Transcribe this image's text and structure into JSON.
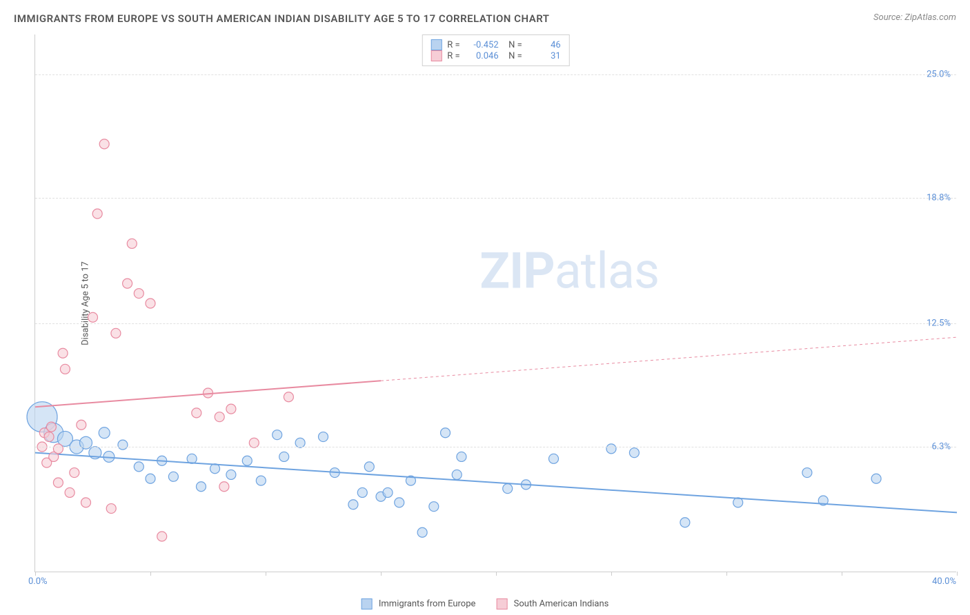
{
  "title": "IMMIGRANTS FROM EUROPE VS SOUTH AMERICAN INDIAN DISABILITY AGE 5 TO 17 CORRELATION CHART",
  "source": "Source: ZipAtlas.com",
  "ylabel": "Disability Age 5 to 17",
  "watermark_zip": "ZIP",
  "watermark_atlas": "atlas",
  "chart": {
    "type": "scatter",
    "xlim": [
      0,
      40
    ],
    "ylim": [
      0,
      27
    ],
    "xticks": [
      0,
      5,
      10,
      15,
      20,
      25,
      30,
      35,
      40
    ],
    "ytick_labels": [
      {
        "v": 6.3,
        "label": "6.3%"
      },
      {
        "v": 12.5,
        "label": "12.5%"
      },
      {
        "v": 18.8,
        "label": "18.8%"
      },
      {
        "v": 25.0,
        "label": "25.0%"
      }
    ],
    "xmin_label": "0.0%",
    "xmax_label": "40.0%",
    "background_color": "#ffffff",
    "grid_color": "#e0e0e0",
    "marker_radius": 7,
    "marker_stroke_width": 1.2,
    "trend_line_width": 2
  },
  "series": [
    {
      "id": "europe",
      "name": "Immigrants from Europe",
      "color_fill": "#b9d3f0",
      "color_stroke": "#6ea3e0",
      "stats": {
        "R": "-0.452",
        "N": "46"
      },
      "trend": {
        "x1": 0,
        "y1": 6.0,
        "x2": 40,
        "y2": 3.0,
        "dashed_from": null
      },
      "points": [
        {
          "x": 0.3,
          "y": 7.8,
          "r": 22
        },
        {
          "x": 0.8,
          "y": 7.0,
          "r": 14
        },
        {
          "x": 1.3,
          "y": 6.7,
          "r": 11
        },
        {
          "x": 1.8,
          "y": 6.3,
          "r": 10
        },
        {
          "x": 2.2,
          "y": 6.5,
          "r": 9
        },
        {
          "x": 2.6,
          "y": 6.0,
          "r": 9
        },
        {
          "x": 3.0,
          "y": 7.0,
          "r": 8
        },
        {
          "x": 3.2,
          "y": 5.8,
          "r": 8
        },
        {
          "x": 3.8,
          "y": 6.4
        },
        {
          "x": 4.5,
          "y": 5.3
        },
        {
          "x": 5.0,
          "y": 4.7
        },
        {
          "x": 5.5,
          "y": 5.6
        },
        {
          "x": 6.0,
          "y": 4.8
        },
        {
          "x": 6.8,
          "y": 5.7
        },
        {
          "x": 7.2,
          "y": 4.3
        },
        {
          "x": 7.8,
          "y": 5.2
        },
        {
          "x": 8.5,
          "y": 4.9
        },
        {
          "x": 9.2,
          "y": 5.6
        },
        {
          "x": 9.8,
          "y": 4.6
        },
        {
          "x": 10.5,
          "y": 6.9
        },
        {
          "x": 10.8,
          "y": 5.8
        },
        {
          "x": 11.5,
          "y": 6.5
        },
        {
          "x": 12.5,
          "y": 6.8
        },
        {
          "x": 13.0,
          "y": 5.0
        },
        {
          "x": 13.8,
          "y": 3.4
        },
        {
          "x": 14.2,
          "y": 4.0
        },
        {
          "x": 14.5,
          "y": 5.3
        },
        {
          "x": 15.0,
          "y": 3.8
        },
        {
          "x": 15.3,
          "y": 4.0
        },
        {
          "x": 15.8,
          "y": 3.5
        },
        {
          "x": 16.3,
          "y": 4.6
        },
        {
          "x": 16.8,
          "y": 2.0
        },
        {
          "x": 17.3,
          "y": 3.3
        },
        {
          "x": 17.8,
          "y": 7.0
        },
        {
          "x": 18.3,
          "y": 4.9
        },
        {
          "x": 18.5,
          "y": 5.8
        },
        {
          "x": 20.5,
          "y": 4.2
        },
        {
          "x": 21.3,
          "y": 4.4
        },
        {
          "x": 22.5,
          "y": 5.7
        },
        {
          "x": 25.0,
          "y": 6.2
        },
        {
          "x": 26.0,
          "y": 6.0
        },
        {
          "x": 28.2,
          "y": 2.5
        },
        {
          "x": 30.5,
          "y": 3.5
        },
        {
          "x": 33.5,
          "y": 5.0
        },
        {
          "x": 34.2,
          "y": 3.6
        },
        {
          "x": 36.5,
          "y": 4.7
        }
      ]
    },
    {
      "id": "sai",
      "name": "South American Indians",
      "color_fill": "#f6cdd6",
      "color_stroke": "#e88aa0",
      "stats": {
        "R": "0.046",
        "N": "31"
      },
      "trend": {
        "x1": 0,
        "y1": 8.3,
        "x2": 40,
        "y2": 11.8,
        "dashed_from": 15
      },
      "points": [
        {
          "x": 0.3,
          "y": 6.3
        },
        {
          "x": 0.4,
          "y": 7.0
        },
        {
          "x": 0.5,
          "y": 5.5
        },
        {
          "x": 0.6,
          "y": 6.8
        },
        {
          "x": 0.7,
          "y": 7.3
        },
        {
          "x": 0.8,
          "y": 5.8
        },
        {
          "x": 1.0,
          "y": 4.5
        },
        {
          "x": 1.0,
          "y": 6.2
        },
        {
          "x": 1.2,
          "y": 11.0
        },
        {
          "x": 1.3,
          "y": 10.2
        },
        {
          "x": 1.5,
          "y": 4.0
        },
        {
          "x": 1.7,
          "y": 5.0
        },
        {
          "x": 2.0,
          "y": 7.4
        },
        {
          "x": 2.2,
          "y": 3.5
        },
        {
          "x": 2.5,
          "y": 12.8
        },
        {
          "x": 2.7,
          "y": 18.0
        },
        {
          "x": 3.0,
          "y": 21.5
        },
        {
          "x": 3.3,
          "y": 3.2
        },
        {
          "x": 3.5,
          "y": 12.0
        },
        {
          "x": 4.0,
          "y": 14.5
        },
        {
          "x": 4.2,
          "y": 16.5
        },
        {
          "x": 4.5,
          "y": 14.0
        },
        {
          "x": 5.0,
          "y": 13.5
        },
        {
          "x": 5.5,
          "y": 1.8
        },
        {
          "x": 7.0,
          "y": 8.0
        },
        {
          "x": 7.5,
          "y": 9.0
        },
        {
          "x": 8.0,
          "y": 7.8
        },
        {
          "x": 8.2,
          "y": 4.3
        },
        {
          "x": 8.5,
          "y": 8.2
        },
        {
          "x": 9.5,
          "y": 6.5
        },
        {
          "x": 11.0,
          "y": 8.8
        }
      ]
    }
  ]
}
